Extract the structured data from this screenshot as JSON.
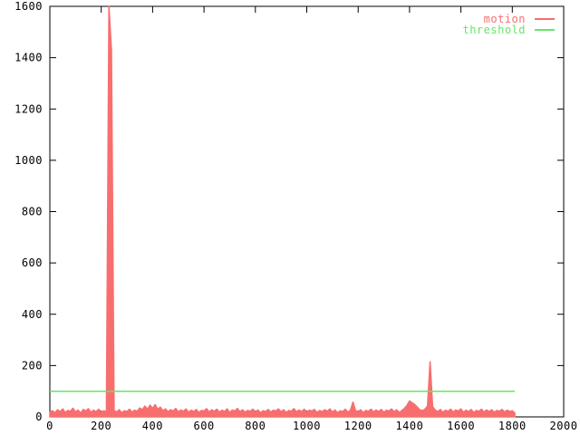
{
  "window": {
    "background": "#ffffff",
    "border_color": "#000000"
  },
  "legend": {
    "position": "top-right",
    "items": [
      {
        "label": "motion",
        "color": "#f86e6e"
      },
      {
        "label": "threshold",
        "color": "#66e566"
      }
    ]
  },
  "chart_data": {
    "type": "line",
    "title": "",
    "xlabel": "",
    "ylabel": "",
    "xlim": [
      0,
      2000
    ],
    "ylim": [
      0,
      1600
    ],
    "xticks": [
      0,
      200,
      400,
      600,
      800,
      1000,
      1200,
      1400,
      1600,
      1800,
      2000
    ],
    "yticks": [
      0,
      200,
      400,
      600,
      800,
      1000,
      1200,
      1400,
      1600
    ],
    "grid": false,
    "legend_position": "top-right",
    "axis_color": "#000000",
    "tick_label_color": "#000000",
    "series": [
      {
        "name": "motion",
        "color": "#f86e6e",
        "style": "filled-line",
        "clipped_at_top": true,
        "x_start": 0,
        "x_step": 10,
        "values": [
          18,
          24,
          16,
          28,
          20,
          31,
          17,
          25,
          22,
          34,
          19,
          27,
          15,
          29,
          23,
          32,
          18,
          26,
          21,
          30,
          17,
          24,
          20,
          1650,
          1430,
          25,
          19,
          28,
          16,
          24,
          21,
          30,
          18,
          26,
          22,
          35,
          28,
          42,
          30,
          46,
          33,
          48,
          29,
          38,
          24,
          31,
          20,
          28,
          23,
          33,
          19,
          27,
          22,
          31,
          18,
          26,
          21,
          29,
          17,
          25,
          23,
          32,
          19,
          28,
          22,
          30,
          18,
          26,
          21,
          31,
          17,
          27,
          23,
          33,
          20,
          28,
          18,
          25,
          22,
          30,
          19,
          27,
          16,
          24,
          21,
          29,
          18,
          26,
          23,
          31,
          20,
          28,
          17,
          25,
          22,
          32,
          19,
          27,
          21,
          30,
          18,
          26,
          23,
          29,
          17,
          25,
          20,
          28,
          22,
          31,
          19,
          27,
          16,
          24,
          21,
          30,
          18,
          26,
          58,
          24,
          20,
          28,
          17,
          25,
          22,
          30,
          19,
          27,
          21,
          29,
          18,
          26,
          23,
          31,
          20,
          28,
          17,
          25,
          33,
          45,
          62,
          55,
          48,
          38,
          28,
          24,
          30,
          42,
          215,
          40,
          26,
          21,
          29,
          18,
          26,
          22,
          30,
          19,
          27,
          23,
          31,
          18,
          26,
          21,
          29,
          17,
          25,
          22,
          30,
          19,
          27,
          21,
          28,
          18,
          25,
          22,
          29,
          19,
          26,
          21,
          24,
          15
        ]
      },
      {
        "name": "threshold",
        "color": "#66e566",
        "style": "line",
        "points": [
          [
            0,
            100
          ],
          [
            1810,
            100
          ]
        ]
      }
    ]
  }
}
